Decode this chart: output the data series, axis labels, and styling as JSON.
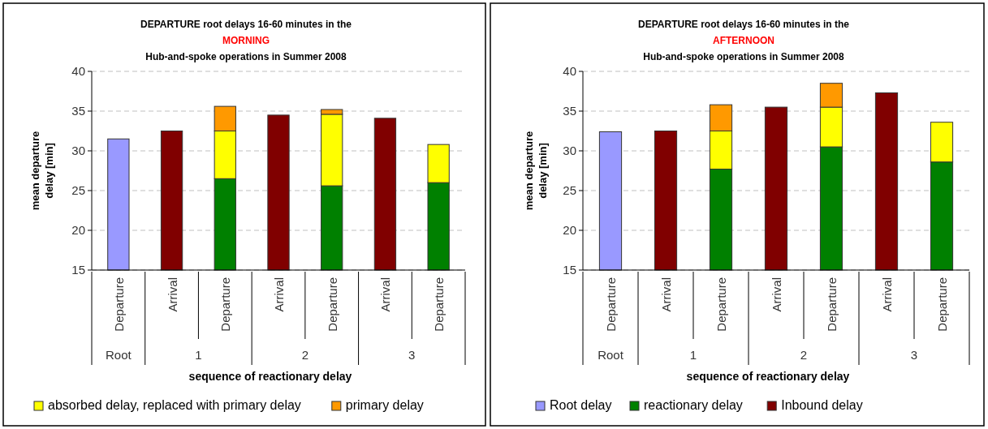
{
  "chart_data": [
    {
      "type": "bar",
      "stacked": true,
      "title": "DEPARTURE root delays 16-60 minutes in the\nMORNING",
      "subtitle": "Hub-and-spoke operations in Summer 2008",
      "xlabel": "sequence of reactionary delay",
      "ylabel": "mean departure delay [min]",
      "categories": [
        "Departure",
        "Arrival",
        "Departure",
        "Arrival",
        "Departure",
        "Arrival",
        "Departure"
      ],
      "annotations": [
        "Root",
        "1",
        "2",
        "3"
      ],
      "ylim": [
        15,
        40
      ],
      "yticks": [
        15,
        20,
        25,
        30,
        35,
        40
      ],
      "grid": "y",
      "legend": "bottom",
      "series": [
        {
          "color": "#9999ff",
          "values": [
            31.5,
            null,
            null,
            null,
            null,
            null,
            null
          ]
        },
        {
          "color": "#008000",
          "values": [
            null,
            null,
            26.5,
            null,
            25.6,
            null,
            26.0
          ]
        },
        {
          "color": "#800000",
          "values": [
            null,
            32.5,
            null,
            34.5,
            null,
            34.1,
            null
          ]
        },
        {
          "name": "absorbed delay, replaced with primary delay",
          "color": "#ffff00",
          "base": [
            null,
            null,
            26.5,
            null,
            25.6,
            null,
            26.0
          ],
          "values": [
            null,
            null,
            6.0,
            null,
            9.0,
            null,
            4.8
          ]
        },
        {
          "name": "primary delay",
          "color": "#ff9900",
          "base": [
            null,
            null,
            32.5,
            null,
            34.6,
            null,
            null
          ],
          "values": [
            null,
            null,
            3.1,
            null,
            0.6,
            null,
            null
          ]
        }
      ]
    },
    {
      "type": "bar",
      "stacked": true,
      "title": "DEPARTURE root delays 16-60 minutes in the\nAFTERNOON",
      "subtitle": "Hub-and-spoke operations in Summer 2008",
      "xlabel": "sequence of reactionary delay",
      "ylabel": "mean departure delay [min]",
      "categories": [
        "Departure",
        "Arrival",
        "Departure",
        "Arrival",
        "Departure",
        "Arrival",
        "Departure"
      ],
      "annotations": [
        "Root",
        "1",
        "2",
        "3"
      ],
      "ylim": [
        15,
        40
      ],
      "yticks": [
        15,
        20,
        25,
        30,
        35,
        40
      ],
      "grid": "y",
      "legend": "bottom",
      "series": [
        {
          "name": "Root delay",
          "color": "#9999ff",
          "values": [
            32.4,
            null,
            null,
            null,
            null,
            null,
            null
          ]
        },
        {
          "name": "reactionary delay",
          "color": "#008000",
          "values": [
            null,
            null,
            27.7,
            null,
            30.5,
            null,
            28.6
          ]
        },
        {
          "name": "Inbound delay",
          "color": "#800000",
          "values": [
            null,
            32.5,
            null,
            35.5,
            null,
            37.3,
            null
          ]
        },
        {
          "color": "#ffff00",
          "base": [
            null,
            null,
            27.7,
            null,
            30.5,
            null,
            28.6
          ],
          "values": [
            null,
            null,
            4.8,
            null,
            5.0,
            null,
            5.0
          ]
        },
        {
          "color": "#ff9900",
          "base": [
            null,
            null,
            32.5,
            null,
            35.5,
            null,
            null
          ],
          "values": [
            null,
            null,
            3.3,
            null,
            3.0,
            null,
            null
          ]
        }
      ]
    }
  ]
}
